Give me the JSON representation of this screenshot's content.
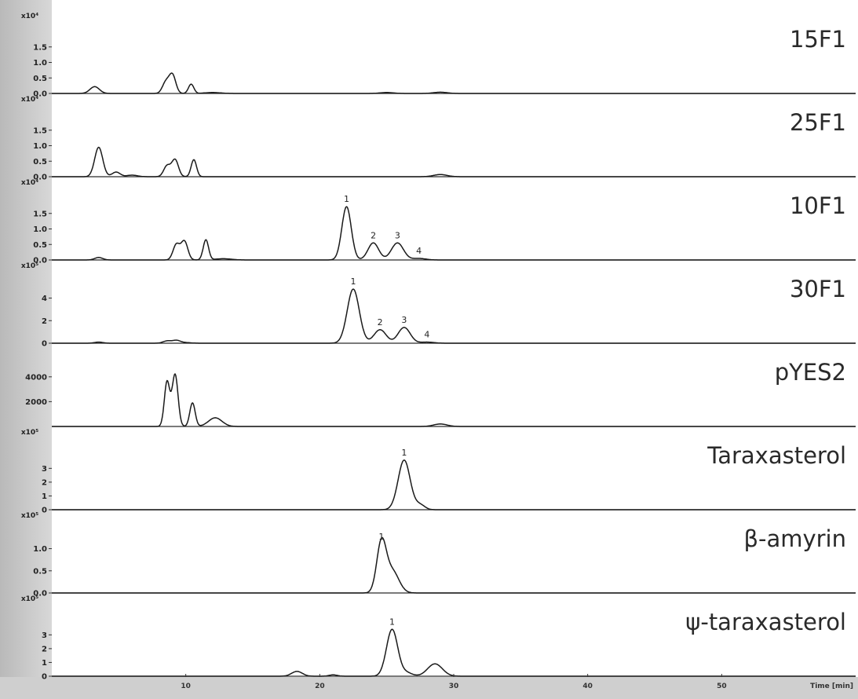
{
  "chart_data": {
    "type": "line",
    "xlim": [
      0,
      60
    ],
    "x_ticks": [
      "10",
      "20",
      "30",
      "40",
      "50"
    ],
    "xlabel": "Time [min]",
    "panels": [
      {
        "label": "15F1",
        "exponent": "x10⁴",
        "ylim": [
          0,
          2.0
        ],
        "y_ticks": [
          "1.5",
          "1.0",
          "0.5",
          "0.0"
        ],
        "y_values": [
          1.5,
          1.0,
          0.5,
          0.0
        ],
        "peaks": [
          {
            "rt": 3.2,
            "h": 0.22,
            "w": 0.35
          },
          {
            "rt": 8.5,
            "h": 0.35,
            "w": 0.25
          },
          {
            "rt": 9.0,
            "h": 0.6,
            "w": 0.25
          },
          {
            "rt": 10.4,
            "h": 0.3,
            "w": 0.2
          },
          {
            "rt": 12.0,
            "h": 0.03,
            "w": 0.6
          },
          {
            "rt": 25.0,
            "h": 0.03,
            "w": 0.5
          },
          {
            "rt": 29.0,
            "h": 0.04,
            "w": 0.5
          }
        ],
        "peak_labels": []
      },
      {
        "label": "25F1",
        "exponent": "x10⁴",
        "ylim": [
          0,
          2.0
        ],
        "y_ticks": [
          "1.5",
          "1.0",
          "0.5",
          "0.0"
        ],
        "y_values": [
          1.5,
          1.0,
          0.5,
          0.0
        ],
        "peaks": [
          {
            "rt": 3.5,
            "h": 0.95,
            "w": 0.3
          },
          {
            "rt": 4.8,
            "h": 0.15,
            "w": 0.3
          },
          {
            "rt": 6.0,
            "h": 0.05,
            "w": 0.4
          },
          {
            "rt": 8.6,
            "h": 0.35,
            "w": 0.25
          },
          {
            "rt": 9.2,
            "h": 0.55,
            "w": 0.25
          },
          {
            "rt": 10.6,
            "h": 0.55,
            "w": 0.2
          },
          {
            "rt": 29.0,
            "h": 0.07,
            "w": 0.5
          }
        ],
        "peak_labels": []
      },
      {
        "label": "10F1",
        "exponent": "x10⁴",
        "ylim": [
          0,
          2.0
        ],
        "y_ticks": [
          "1.5",
          "1.0",
          "0.5",
          "0.0"
        ],
        "y_values": [
          1.5,
          1.0,
          0.5,
          0.0
        ],
        "peaks": [
          {
            "rt": 3.5,
            "h": 0.08,
            "w": 0.3
          },
          {
            "rt": 9.3,
            "h": 0.5,
            "w": 0.25
          },
          {
            "rt": 9.9,
            "h": 0.6,
            "w": 0.25
          },
          {
            "rt": 11.5,
            "h": 0.65,
            "w": 0.2
          },
          {
            "rt": 12.8,
            "h": 0.04,
            "w": 0.6
          },
          {
            "rt": 22.0,
            "h": 1.72,
            "w": 0.35
          },
          {
            "rt": 24.0,
            "h": 0.55,
            "w": 0.4
          },
          {
            "rt": 25.8,
            "h": 0.55,
            "w": 0.45
          },
          {
            "rt": 27.4,
            "h": 0.05,
            "w": 0.5
          }
        ],
        "peak_labels": [
          {
            "rt": 22.0,
            "h": 1.72,
            "text": "1"
          },
          {
            "rt": 24.0,
            "h": 0.55,
            "text": "2"
          },
          {
            "rt": 25.8,
            "h": 0.55,
            "text": "3"
          },
          {
            "rt": 27.4,
            "h": 0.05,
            "text": "4"
          }
        ]
      },
      {
        "label": "30F1",
        "exponent": "x10⁵",
        "ylim": [
          0,
          5.5
        ],
        "y_ticks": [
          "4",
          "2",
          "0"
        ],
        "y_values": [
          4,
          2,
          0
        ],
        "peaks": [
          {
            "rt": 3.5,
            "h": 0.1,
            "w": 0.3
          },
          {
            "rt": 8.6,
            "h": 0.2,
            "w": 0.3
          },
          {
            "rt": 9.3,
            "h": 0.25,
            "w": 0.3
          },
          {
            "rt": 10.0,
            "h": 0.05,
            "w": 0.4
          },
          {
            "rt": 22.5,
            "h": 4.8,
            "w": 0.45
          },
          {
            "rt": 24.5,
            "h": 1.2,
            "w": 0.45
          },
          {
            "rt": 26.3,
            "h": 1.4,
            "w": 0.45
          },
          {
            "rt": 28.0,
            "h": 0.1,
            "w": 0.5
          }
        ],
        "peak_labels": [
          {
            "rt": 22.5,
            "h": 4.8,
            "text": "1"
          },
          {
            "rt": 24.5,
            "h": 1.2,
            "text": "2"
          },
          {
            "rt": 26.3,
            "h": 1.4,
            "text": "3"
          },
          {
            "rt": 28.0,
            "h": 0.1,
            "text": "4"
          }
        ]
      },
      {
        "label": "pYES2",
        "exponent": "",
        "ylim": [
          0,
          5000
        ],
        "y_ticks": [
          "4000",
          "2000"
        ],
        "y_values": [
          4000,
          2000
        ],
        "peaks": [
          {
            "rt": 8.6,
            "h": 3600,
            "w": 0.2
          },
          {
            "rt": 9.2,
            "h": 4200,
            "w": 0.22
          },
          {
            "rt": 10.5,
            "h": 1900,
            "w": 0.2
          },
          {
            "rt": 12.2,
            "h": 700,
            "w": 0.5
          },
          {
            "rt": 29.0,
            "h": 200,
            "w": 0.5
          }
        ],
        "peak_labels": []
      },
      {
        "label": "Taraxasterol",
        "exponent": "x10⁵",
        "ylim": [
          0,
          4.5
        ],
        "y_ticks": [
          "3",
          "2",
          "1",
          "0"
        ],
        "y_values": [
          3,
          2,
          1,
          0
        ],
        "peaks": [
          {
            "rt": 26.3,
            "h": 3.6,
            "w": 0.45
          },
          {
            "rt": 27.5,
            "h": 0.35,
            "w": 0.35
          }
        ],
        "peak_labels": [
          {
            "rt": 26.3,
            "h": 3.6,
            "text": "1"
          }
        ]
      },
      {
        "label": "β-amyrin",
        "exponent": "x10⁵",
        "ylim": [
          0,
          1.4
        ],
        "y_ticks": [
          "1.0",
          "0.5",
          "0.0"
        ],
        "y_values": [
          1.0,
          0.5,
          0.0
        ],
        "peaks": [
          {
            "rt": 24.6,
            "h": 1.1,
            "w": 0.35
          },
          {
            "rt": 25.4,
            "h": 0.5,
            "w": 0.5
          }
        ],
        "peak_labels": [
          {
            "rt": 24.6,
            "h": 1.1,
            "text": "1"
          }
        ]
      },
      {
        "label": "ψ-taraxasterol",
        "exponent": "x10⁵",
        "ylim": [
          0,
          4.5
        ],
        "y_ticks": [
          "3",
          "2",
          "1",
          "0"
        ],
        "y_values": [
          3,
          2,
          1,
          0
        ],
        "peaks": [
          {
            "rt": 18.3,
            "h": 0.35,
            "w": 0.4
          },
          {
            "rt": 21.0,
            "h": 0.1,
            "w": 0.3
          },
          {
            "rt": 25.4,
            "h": 3.4,
            "w": 0.42
          },
          {
            "rt": 26.5,
            "h": 0.25,
            "w": 0.4
          },
          {
            "rt": 28.6,
            "h": 0.9,
            "w": 0.55
          }
        ],
        "peak_labels": [
          {
            "rt": 25.4,
            "h": 3.4,
            "text": "1"
          }
        ]
      }
    ]
  }
}
